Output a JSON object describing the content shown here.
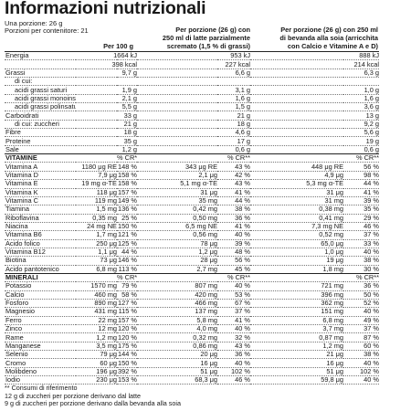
{
  "title": "Informazioni nutrizionali",
  "portion": "Una porzione: 26 g",
  "portions_per_container": "Porzioni per contenitore: 21",
  "headers": {
    "col1": "Per 100 g",
    "col2_line1": "Per porzione (26 g) con",
    "col2_line2": "250 ml di latte parzialmente",
    "col2_line3": "scremato (1,5 % di grassi)",
    "col3_line1": "Per porzione (26 g) con 250 ml",
    "col3_line2": "di bevanda alla soia (arricchita",
    "col3_line3": "con Calcio e Vitamine A e D)"
  },
  "rows": [
    {
      "label": "Energia",
      "v1": "1664 kJ",
      "v2": "953 kJ",
      "v3": "888 kJ",
      "indent": false
    },
    {
      "label": "",
      "v1": "398 kcal",
      "v2": "227 kcal",
      "v3": "214 kcal",
      "indent": false
    },
    {
      "label": "Grassi",
      "v1": "9,7 g",
      "v2": "6,6 g",
      "v3": "6,3 g",
      "indent": false
    },
    {
      "label": "di cui:",
      "v1": "",
      "v2": "",
      "v3": "",
      "indent": true
    },
    {
      "label": "acidi grassi saturi",
      "v1": "1,9 g",
      "v2": "3,1 g",
      "v3": "1,0 g",
      "indent": true
    },
    {
      "label": "acidi grassi monoinsaturi",
      "v1": "2,1 g",
      "v2": "1,6 g",
      "v3": "1,6 g",
      "indent": true
    },
    {
      "label": "acidi grassi polinsaturi",
      "v1": "5,5 g",
      "v2": "1,5 g",
      "v3": "3,6 g",
      "indent": true
    },
    {
      "label": "Carboidrati",
      "v1": "33 g",
      "v2": "21 g",
      "v3": "13 g",
      "indent": false
    },
    {
      "label": "di cui: zuccheri",
      "v1": "21 g",
      "v2": "18 g",
      "v3": "9,2 g",
      "indent": true
    },
    {
      "label": "Fibre",
      "v1": "18 g",
      "v2": "4,6 g",
      "v3": "5,6 g",
      "indent": false
    },
    {
      "label": "Proteine",
      "v1": "35 g",
      "v2": "17 g",
      "v3": "19 g",
      "indent": false
    },
    {
      "label": "Sale",
      "v1": "1,2 g",
      "v2": "0,6 g",
      "v3": "0,6 g",
      "indent": false
    }
  ],
  "vitamins": {
    "heading": "VITAMINE",
    "cr_header": "% CR**",
    "rows": [
      {
        "label": "Vitamina A",
        "v1": "1180 μg RE",
        "c1": "148 %",
        "v2": "343 μg RE",
        "c2": "43 %",
        "v3": "448 μg RE",
        "c3": "56 %"
      },
      {
        "label": "Vitamina D",
        "v1": "7,9 μg",
        "c1": "158 %",
        "v2": "2,1 μg",
        "c2": "42 %",
        "v3": "4,9 μg",
        "c3": "98 %"
      },
      {
        "label": "Vitamina E",
        "v1": "19 mg α-TE",
        "c1": "158 %",
        "v2": "5,1 mg α-TE",
        "c2": "43 %",
        "v3": "5,3 mg α-TE",
        "c3": "44 %"
      },
      {
        "label": "Vitamina K",
        "v1": "118 μg",
        "c1": "157 %",
        "v2": "31 μg",
        "c2": "41 %",
        "v3": "31 μg",
        "c3": "41 %"
      },
      {
        "label": "Vitamina C",
        "v1": "119 mg",
        "c1": "149 %",
        "v2": "35 mg",
        "c2": "44 %",
        "v3": "31 mg",
        "c3": "39 %"
      },
      {
        "label": "Tiamina",
        "v1": "1,5 mg",
        "c1": "136 %",
        "v2": "0,42 mg",
        "c2": "38 %",
        "v3": "0,38 mg",
        "c3": "35 %"
      },
      {
        "label": "Riboflavina",
        "v1": "0,35 mg",
        "c1": "25 %",
        "v2": "0,50 mg",
        "c2": "36 %",
        "v3": "0,41 mg",
        "c3": "29 %"
      },
      {
        "label": "Niacina",
        "v1": "24 mg NE",
        "c1": "150 %",
        "v2": "6,5 mg NE",
        "c2": "41 %",
        "v3": "7,3 mg NE",
        "c3": "46 %"
      },
      {
        "label": "Vitamina B6",
        "v1": "1,7 mg",
        "c1": "121 %",
        "v2": "0,56 mg",
        "c2": "40 %",
        "v3": "0,52 mg",
        "c3": "37 %"
      },
      {
        "label": "Acido folico",
        "v1": "250 μg",
        "c1": "125 %",
        "v2": "78 μg",
        "c2": "39 %",
        "v3": "65,0 μg",
        "c3": "33 %"
      },
      {
        "label": "Vitamina B12",
        "v1": "1,1 μg",
        "c1": "44 %",
        "v2": "1,2 μg",
        "c2": "48 %",
        "v3": "1,0 μg",
        "c3": "40 %"
      },
      {
        "label": "Biotina",
        "v1": "73 μg",
        "c1": "146 %",
        "v2": "28 μg",
        "c2": "56 %",
        "v3": "19 μg",
        "c3": "38 %"
      },
      {
        "label": "Acido pantotenico",
        "v1": "6,8 mg",
        "c1": "113 %",
        "v2": "2,7 mg",
        "c2": "45 %",
        "v3": "1,8 mg",
        "c3": "30 %"
      }
    ]
  },
  "minerals": {
    "heading": "MINERALI",
    "cr_header": "% CR**",
    "rows": [
      {
        "label": "Potassio",
        "v1": "1570 mg",
        "c1": "79 %",
        "v2": "807 mg",
        "c2": "40 %",
        "v3": "721 mg",
        "c3": "36 %"
      },
      {
        "label": "Calcio",
        "v1": "460 mg",
        "c1": "58 %",
        "v2": "420 mg",
        "c2": "53 %",
        "v3": "396 mg",
        "c3": "50 %"
      },
      {
        "label": "Fosforo",
        "v1": "890 mg",
        "c1": "127 %",
        "v2": "466 mg",
        "c2": "67 %",
        "v3": "362 mg",
        "c3": "52 %"
      },
      {
        "label": "Magnesio",
        "v1": "431 mg",
        "c1": "115 %",
        "v2": "137 mg",
        "c2": "37 %",
        "v3": "151 mg",
        "c3": "40 %"
      },
      {
        "label": "Ferro",
        "v1": "22 mg",
        "c1": "157 %",
        "v2": "5,8 mg",
        "c2": "41 %",
        "v3": "6,8 mg",
        "c3": "49 %"
      },
      {
        "label": "Zinco",
        "v1": "12 mg",
        "c1": "120 %",
        "v2": "4,0 mg",
        "c2": "40 %",
        "v3": "3,7 mg",
        "c3": "37 %"
      },
      {
        "label": "Rame",
        "v1": "1,2 mg",
        "c1": "120 %",
        "v2": "0,32 mg",
        "c2": "32 %",
        "v3": "0,87 mg",
        "c3": "87 %"
      },
      {
        "label": "Manganese",
        "v1": "3,5 mg",
        "c1": "175 %",
        "v2": "0,86 mg",
        "c2": "43 %",
        "v3": "1,2 mg",
        "c3": "60 %"
      },
      {
        "label": "Selenio",
        "v1": "79 μg",
        "c1": "144 %",
        "v2": "20 μg",
        "c2": "36 %",
        "v3": "21 μg",
        "c3": "38 %"
      },
      {
        "label": "Cromo",
        "v1": "60 μg",
        "c1": "150 %",
        "v2": "16 μg",
        "c2": "40 %",
        "v3": "16 μg",
        "c3": "40 %"
      },
      {
        "label": "Molibdeno",
        "v1": "196 μg",
        "c1": "392 %",
        "v2": "51 μg",
        "c2": "102 %",
        "v3": "51 μg",
        "c3": "102 %"
      },
      {
        "label": "Iodio",
        "v1": "230 μg",
        "c1": "153 %",
        "v2": "68,3 μg",
        "c2": "46 %",
        "v3": "59,8 μg",
        "c3": "40 %"
      }
    ]
  },
  "footnotes": [
    "** Consumi di riferimento",
    "12 g di zuccheri per porzione derivano dal latte",
    "9 g di zuccheri per porzione derivano dalla bevanda alla soia"
  ]
}
